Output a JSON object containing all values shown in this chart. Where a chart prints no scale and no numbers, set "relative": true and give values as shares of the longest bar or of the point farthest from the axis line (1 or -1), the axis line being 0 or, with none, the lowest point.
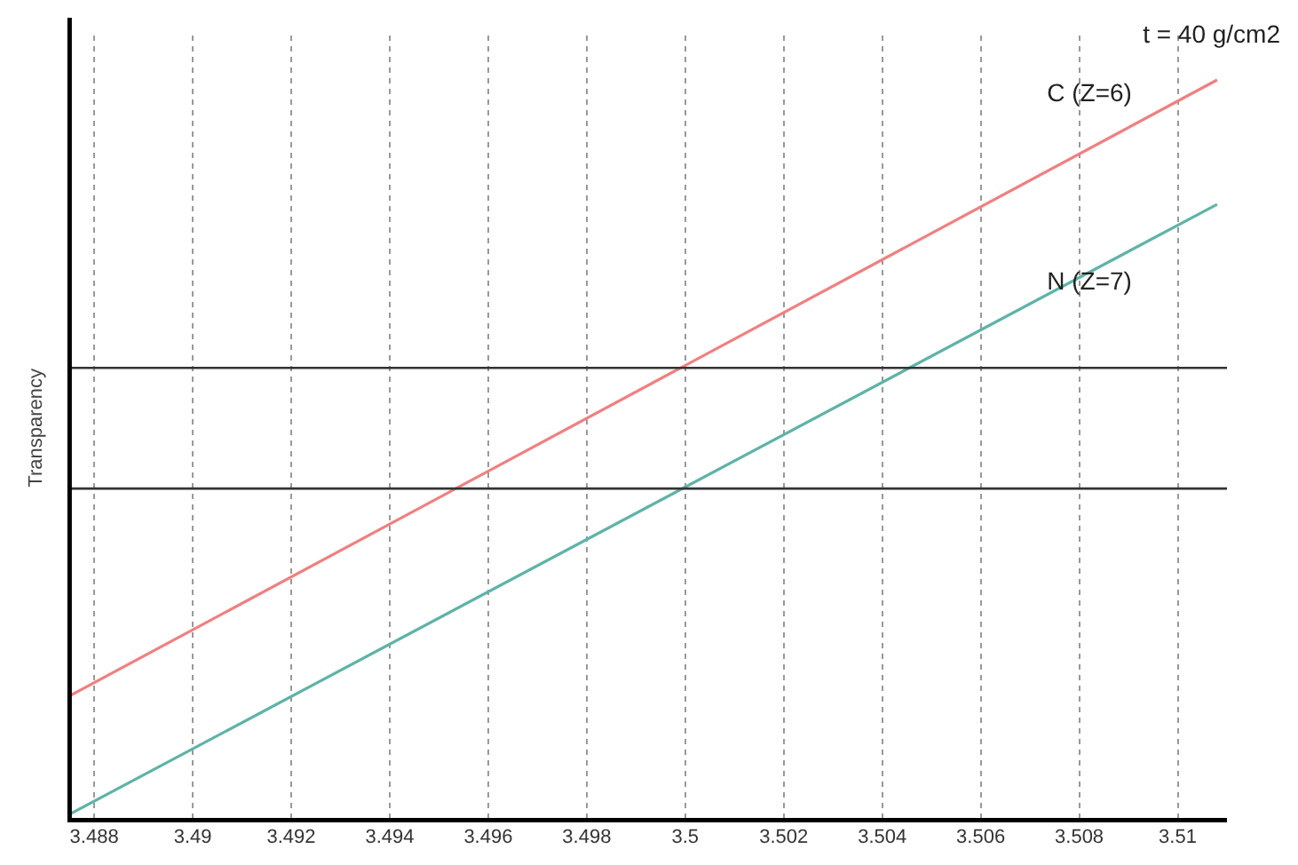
{
  "chart_data": {
    "type": "line",
    "ylabel": "Transparency",
    "relative": true,
    "x": [
      3.4875,
      3.5108
    ],
    "xlim": [
      3.4875,
      3.511
    ],
    "xticks": [
      3.488,
      3.49,
      3.492,
      3.494,
      3.496,
      3.498,
      3.5,
      3.502,
      3.504,
      3.506,
      3.508,
      3.51
    ],
    "series": [
      {
        "name": "C (Z=6)",
        "color": "#f08080",
        "values": [
          0.168,
          1
        ]
      },
      {
        "name": "N (Z=7)",
        "color": "#5fb3a8",
        "values": [
          0.008,
          0.832
        ]
      }
    ],
    "ref_lines": [
      {
        "axis": "y",
        "value": 0.611,
        "color": "#333333"
      },
      {
        "axis": "y",
        "value": 0.448,
        "color": "#333333"
      }
    ],
    "annotations": [
      "t = 40 g/cm2"
    ],
    "grid": "x",
    "legend": false,
    "marker": "none",
    "line_style": "solid"
  }
}
